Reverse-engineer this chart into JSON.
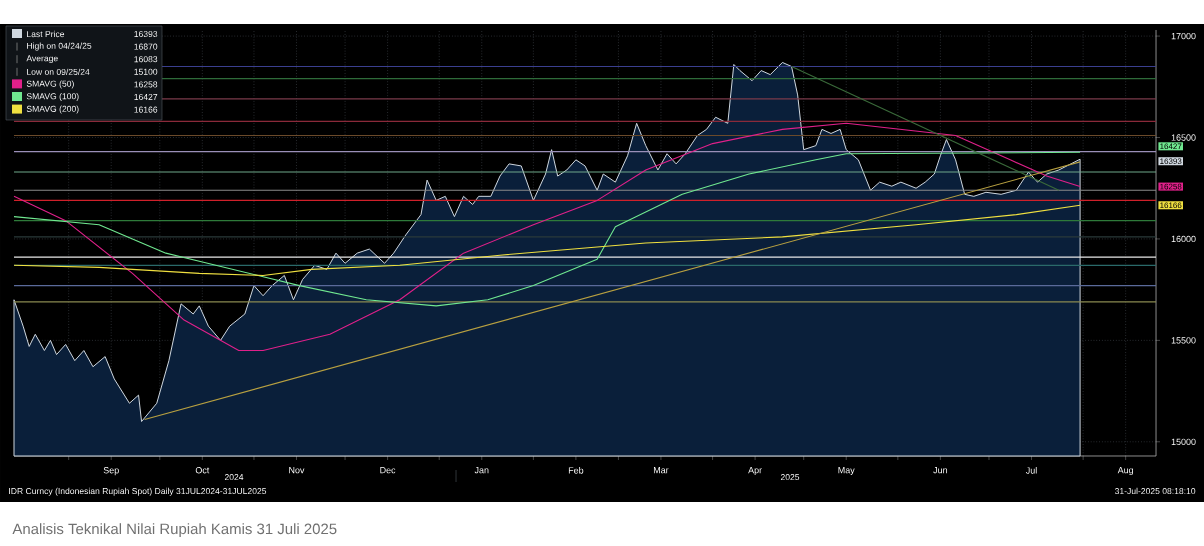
{
  "chart_data": {
    "type": "line",
    "legend": "top left",
    "grid": true,
    "xlim": [
      "2024-08-14",
      "2025-08-25"
    ],
    "ylim": [
      14930,
      17030
    ],
    "xticks": [
      {
        "value": "2024-09-01",
        "label": null
      },
      {
        "value": "2024-09-15",
        "label": "Sep"
      },
      {
        "value": "2024-10-01",
        "label": null
      },
      {
        "value": "2024-10-15",
        "label": "Oct"
      },
      {
        "value": "2024-11-01",
        "label": null
      },
      {
        "value": "2024-11-15",
        "label": "Nov"
      },
      {
        "value": "2024-12-01",
        "label": null
      },
      {
        "value": "2024-12-15",
        "label": "Dec"
      },
      {
        "value": "2025-01-01",
        "label": null
      },
      {
        "value": "2025-01-15",
        "label": "Jan"
      },
      {
        "value": "2025-02-01",
        "label": null
      },
      {
        "value": "2025-02-15",
        "label": "Feb"
      },
      {
        "value": "2025-03-01",
        "label": null
      },
      {
        "value": "2025-03-15",
        "label": "Mar"
      },
      {
        "value": "2025-04-01",
        "label": null
      },
      {
        "value": "2025-04-15",
        "label": "Apr"
      },
      {
        "value": "2025-05-01",
        "label": null
      },
      {
        "value": "2025-05-15",
        "label": "May"
      },
      {
        "value": "2025-06-01",
        "label": null
      },
      {
        "value": "2025-06-15",
        "label": "Jun"
      },
      {
        "value": "2025-07-01",
        "label": null
      },
      {
        "value": "2025-07-15",
        "label": "Jul"
      },
      {
        "value": "2025-08-01",
        "label": null
      },
      {
        "value": "2025-08-15",
        "label": "Aug"
      }
    ],
    "yticks": [
      15000,
      15500,
      16000,
      16500,
      17000
    ],
    "series": [
      {
        "name": "Last Price",
        "type": "area",
        "color": "#d0d8e0",
        "x": [
          "2024-08-14",
          "2024-08-17",
          "2024-08-19",
          "2024-08-21",
          "2024-08-24",
          "2024-08-26",
          "2024-08-28",
          "2024-08-31",
          "2024-09-03",
          "2024-09-06",
          "2024-09-09",
          "2024-09-13",
          "2024-09-16",
          "2024-09-21",
          "2024-09-24",
          "2024-09-25",
          "2024-09-30",
          "2024-10-04",
          "2024-10-08",
          "2024-10-12",
          "2024-10-14",
          "2024-10-17",
          "2024-10-21",
          "2024-10-24",
          "2024-10-29",
          "2024-11-01",
          "2024-11-04",
          "2024-11-07",
          "2024-11-11",
          "2024-11-14",
          "2024-11-17",
          "2024-11-21",
          "2024-11-25",
          "2024-11-28",
          "2024-12-01",
          "2024-12-05",
          "2024-12-09",
          "2024-12-14",
          "2024-12-17",
          "2024-12-21",
          "2024-12-26",
          "2024-12-28",
          "2024-12-31",
          "2025-01-03",
          "2025-01-06",
          "2025-01-09",
          "2025-01-12",
          "2025-01-14",
          "2025-01-18",
          "2025-01-21",
          "2025-01-24",
          "2025-01-28",
          "2025-02-01",
          "2025-02-05",
          "2025-02-07",
          "2025-02-09",
          "2025-02-12",
          "2025-02-15",
          "2025-02-18",
          "2025-02-22",
          "2025-02-24",
          "2025-02-28",
          "2025-03-04",
          "2025-03-07",
          "2025-03-10",
          "2025-03-14",
          "2025-03-17",
          "2025-03-20",
          "2025-03-23",
          "2025-03-27",
          "2025-03-30",
          "2025-04-02",
          "2025-04-06",
          "2025-04-08",
          "2025-04-10",
          "2025-04-14",
          "2025-04-17",
          "2025-04-20",
          "2025-04-24",
          "2025-04-27",
          "2025-04-29",
          "2025-05-01",
          "2025-05-05",
          "2025-05-07",
          "2025-05-10",
          "2025-05-13",
          "2025-05-15",
          "2025-05-19",
          "2025-05-23",
          "2025-05-26",
          "2025-05-30",
          "2025-06-02",
          "2025-06-07",
          "2025-06-10",
          "2025-06-13",
          "2025-06-15",
          "2025-06-17",
          "2025-06-20",
          "2025-06-23",
          "2025-06-26",
          "2025-06-30",
          "2025-07-05",
          "2025-07-10",
          "2025-07-14",
          "2025-07-17",
          "2025-07-20",
          "2025-07-24",
          "2025-07-31"
        ],
        "values": [
          15700,
          15570,
          15470,
          15530,
          15450,
          15500,
          15430,
          15480,
          15400,
          15450,
          15370,
          15420,
          15310,
          15190,
          15230,
          15100,
          15190,
          15400,
          15680,
          15630,
          15670,
          15570,
          15500,
          15570,
          15630,
          15770,
          15720,
          15770,
          15820,
          15700,
          15800,
          15870,
          15850,
          15930,
          15880,
          15930,
          15950,
          15880,
          15930,
          16020,
          16120,
          16290,
          16190,
          16210,
          16110,
          16210,
          16170,
          16210,
          16210,
          16310,
          16370,
          16360,
          16190,
          16320,
          16440,
          16310,
          16340,
          16390,
          16360,
          16240,
          16320,
          16280,
          16410,
          16570,
          16460,
          16340,
          16420,
          16370,
          16420,
          16510,
          16540,
          16600,
          16570,
          16860,
          16830,
          16780,
          16830,
          16810,
          16870,
          16850,
          16710,
          16440,
          16460,
          16540,
          16520,
          16540,
          16440,
          16390,
          16240,
          16280,
          16260,
          16280,
          16250,
          16280,
          16320,
          16410,
          16490,
          16390,
          16220,
          16210,
          16230,
          16220,
          16240,
          16330,
          16280,
          16320,
          16340,
          16393
        ]
      },
      {
        "name": "SMAVG (50)",
        "type": "line",
        "color": "#e0208a",
        "x": [
          "2024-08-14",
          "2024-08-31",
          "2024-09-22",
          "2024-10-09",
          "2024-10-27",
          "2024-11-04",
          "2024-11-26",
          "2024-12-19",
          "2025-01-09",
          "2025-02-01",
          "2025-02-22",
          "2025-03-10",
          "2025-04-01",
          "2025-04-24",
          "2025-05-15",
          "2025-06-02",
          "2025-06-20",
          "2025-07-08",
          "2025-07-20",
          "2025-07-31"
        ],
        "values": [
          16210,
          16090,
          15830,
          15600,
          15450,
          15450,
          15530,
          15700,
          15930,
          16070,
          16190,
          16340,
          16470,
          16540,
          16570,
          16540,
          16510,
          16390,
          16310,
          16258
        ]
      },
      {
        "name": "SMAVG (100)",
        "type": "line",
        "color": "#70e890",
        "x": [
          "2024-08-14",
          "2024-09-11",
          "2024-10-03",
          "2024-10-25",
          "2024-11-16",
          "2024-12-08",
          "2024-12-31",
          "2025-01-17",
          "2025-02-01",
          "2025-02-22",
          "2025-02-28",
          "2025-03-22",
          "2025-04-13",
          "2025-05-05",
          "2025-05-15",
          "2025-07-31"
        ],
        "values": [
          16110,
          16070,
          15930,
          15850,
          15770,
          15700,
          15670,
          15700,
          15770,
          15900,
          16060,
          16220,
          16320,
          16390,
          16420,
          16427
        ]
      },
      {
        "name": "SMAVG (200)",
        "type": "line",
        "color": "#f0e040",
        "x": [
          "2024-08-14",
          "2024-09-11",
          "2024-10-14",
          "2024-11-04",
          "2024-11-20",
          "2024-12-19",
          "2025-01-21",
          "2025-02-22",
          "2025-03-10",
          "2025-04-24",
          "2025-06-07",
          "2025-07-10",
          "2025-07-31"
        ],
        "values": [
          15870,
          15860,
          15830,
          15820,
          15850,
          15870,
          15920,
          15960,
          15980,
          16010,
          16070,
          16120,
          16166
        ]
      },
      {
        "type": "line",
        "color": "#b8a040",
        "x": [
          "2024-09-26",
          "2025-07-31"
        ],
        "values": [
          15110,
          16380
        ]
      },
      {
        "type": "line",
        "color": "#3a6a3a",
        "x": [
          "2025-04-27",
          "2025-07-24"
        ],
        "values": [
          16850,
          16240
        ]
      }
    ],
    "ref_lines": [
      {
        "axis": "y",
        "value": 16850,
        "color": "#3a3f8f"
      },
      {
        "axis": "y",
        "value": 16790,
        "color": "#2e6b3a"
      },
      {
        "axis": "y",
        "value": 16690,
        "color": "#7a3a4a"
      },
      {
        "axis": "y",
        "value": 16580,
        "color": "#8a2a3a"
      },
      {
        "axis": "y",
        "value": 16510,
        "color": "#6b4a2a"
      },
      {
        "axis": "y",
        "value": 16430,
        "color": "#9a8fb8"
      },
      {
        "axis": "y",
        "value": 16330,
        "color": "#6fa88a"
      },
      {
        "axis": "y",
        "value": 16240,
        "color": "#8a8a8a"
      },
      {
        "axis": "y",
        "value": 16190,
        "color": "#d0202a"
      },
      {
        "axis": "y",
        "value": 16090,
        "color": "#2e7a3a"
      },
      {
        "axis": "y",
        "value": 16010,
        "color": "#2a3a3a"
      },
      {
        "axis": "y",
        "value": 15910,
        "color": "#e8e8e8"
      },
      {
        "axis": "y",
        "value": 15870,
        "color": "#2a6a6a"
      },
      {
        "axis": "y",
        "value": 15770,
        "color": "#5a6a9a"
      },
      {
        "axis": "y",
        "value": 15690,
        "color": "#8a8a50"
      }
    ],
    "annotations": [
      "High on 04/24/25",
      "Average",
      "Low on 09/25/24",
      "16393",
      "16870",
      "16083",
      "15100",
      "16258",
      "16427",
      "16166",
      {
        "text": "16427",
        "x": "2025-08-25",
        "y": 16427
      },
      {
        "text": "16393",
        "x": "2025-08-25",
        "y": 16393
      },
      {
        "text": "16258",
        "x": "2025-08-25",
        "y": 16258
      },
      {
        "text": "16166",
        "x": "2025-08-25",
        "y": 16166
      },
      "2024",
      "2025",
      "IDR Curncy (Indonesian Rupiah Spot)  Daily 31JUL2024-31JUL2025",
      "31-Jul-2025 08:18:10",
      "Analisis Teknikal Nilai Rupiah Kamis 31 Juli 2025"
    ]
  }
}
